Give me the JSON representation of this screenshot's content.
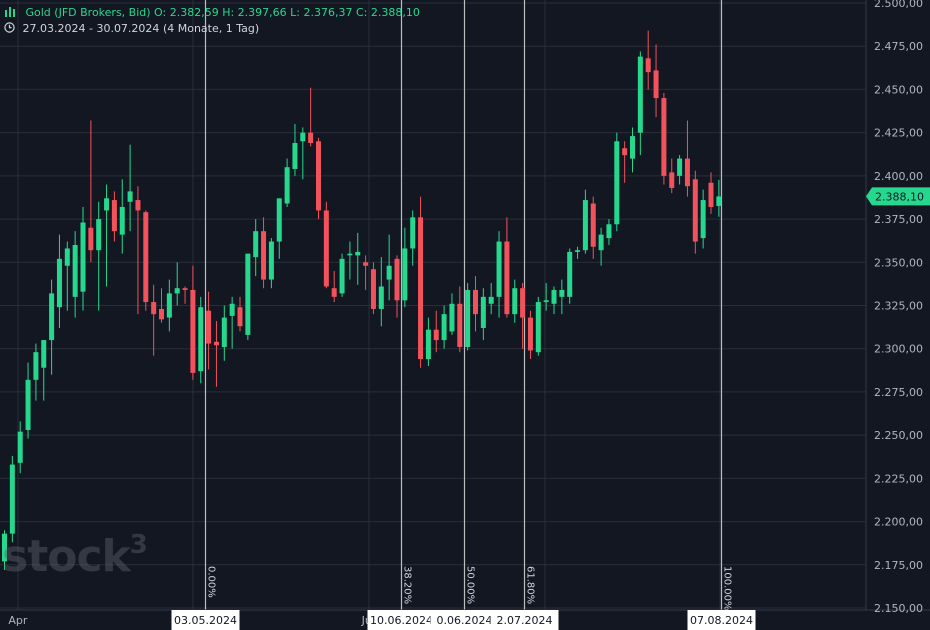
{
  "header": {
    "symbol": "Gold (JFD Brokers, Bid)",
    "open": "O: 2.382,59",
    "high": "H: 2.397,66",
    "low": "L: 2.376,37",
    "close": "C: 2.388,10",
    "range": "27.03.2024 - 30.07.2024",
    "interval": "(4 Monate, 1 Tag)",
    "icon": "clock-icon"
  },
  "watermark": "stock",
  "watermark_sup": "3",
  "colors": {
    "up": "#26d88e",
    "down": "#f2525b",
    "bg": "#131722",
    "grid": "#2a2e39",
    "fib": "#d9d9d9"
  },
  "chart_data": {
    "type": "candlestick",
    "ylim": [
      2150,
      2500
    ],
    "y_ticks": [
      "2.500,00",
      "2.475,00",
      "2.450,00",
      "2.425,00",
      "2.400,00",
      "2.375,00",
      "2.350,00",
      "2.325,00",
      "2.300,00",
      "2.275,00",
      "2.250,00",
      "2.225,00",
      "2.200,00",
      "2.175,00",
      "2.150,00"
    ],
    "last_price": {
      "value": 2388.1,
      "label": "2.388,10"
    },
    "x_labels": [
      {
        "label": "Apr",
        "index": 1
      },
      {
        "label": "Ju",
        "index": 46
      }
    ],
    "date_flags": [
      {
        "label": "03.05.2024",
        "index": 25.5
      },
      {
        "label": "10.06.2024",
        "index": 50.5
      },
      {
        "label": "0.06.2024",
        "index": 58.5
      },
      {
        "label": "2.07.2024",
        "index": 66.2
      },
      {
        "label": "07.08.2024",
        "index": 91.3
      }
    ],
    "fib_lines": [
      {
        "label": "0.00%",
        "index": 25.5
      },
      {
        "label": "38.20%",
        "index": 50.5
      },
      {
        "label": "50.00%",
        "index": 58.5
      },
      {
        "label": "61.80%",
        "index": 66.2
      },
      {
        "label": "100.00%",
        "index": 91.3
      }
    ],
    "candles": [
      {
        "o": 2177,
        "h": 2195,
        "l": 2172,
        "c": 2193
      },
      {
        "o": 2193,
        "h": 2238,
        "l": 2188,
        "c": 2233
      },
      {
        "o": 2234,
        "h": 2258,
        "l": 2228,
        "c": 2252
      },
      {
        "o": 2253,
        "h": 2292,
        "l": 2248,
        "c": 2282
      },
      {
        "o": 2282,
        "h": 2303,
        "l": 2270,
        "c": 2298
      },
      {
        "o": 2289,
        "h": 2305,
        "l": 2270,
        "c": 2305
      },
      {
        "o": 2305,
        "h": 2340,
        "l": 2285,
        "c": 2332
      },
      {
        "o": 2324,
        "h": 2366,
        "l": 2312,
        "c": 2352
      },
      {
        "o": 2348,
        "h": 2362,
        "l": 2322,
        "c": 2358
      },
      {
        "o": 2330,
        "h": 2368,
        "l": 2318,
        "c": 2360
      },
      {
        "o": 2333,
        "h": 2382,
        "l": 2322,
        "c": 2373
      },
      {
        "o": 2370,
        "h": 2432,
        "l": 2350,
        "c": 2357
      },
      {
        "o": 2357,
        "h": 2385,
        "l": 2322,
        "c": 2375
      },
      {
        "o": 2380,
        "h": 2395,
        "l": 2336,
        "c": 2387
      },
      {
        "o": 2386,
        "h": 2391,
        "l": 2362,
        "c": 2368
      },
      {
        "o": 2366,
        "h": 2398,
        "l": 2355,
        "c": 2382
      },
      {
        "o": 2385,
        "h": 2418,
        "l": 2368,
        "c": 2391
      },
      {
        "o": 2386,
        "h": 2394,
        "l": 2320,
        "c": 2380
      },
      {
        "o": 2379,
        "h": 2380,
        "l": 2322,
        "c": 2327
      },
      {
        "o": 2327,
        "h": 2337,
        "l": 2296,
        "c": 2320
      },
      {
        "o": 2323,
        "h": 2335,
        "l": 2315,
        "c": 2317
      },
      {
        "o": 2318,
        "h": 2340,
        "l": 2310,
        "c": 2332
      },
      {
        "o": 2332,
        "h": 2350,
        "l": 2325,
        "c": 2335
      },
      {
        "o": 2335,
        "h": 2336,
        "l": 2326,
        "c": 2334
      },
      {
        "o": 2334,
        "h": 2348,
        "l": 2282,
        "c": 2286
      },
      {
        "o": 2287,
        "h": 2330,
        "l": 2280,
        "c": 2324
      },
      {
        "o": 2322,
        "h": 2333,
        "l": 2288,
        "c": 2303
      },
      {
        "o": 2304,
        "h": 2316,
        "l": 2278,
        "c": 2302
      },
      {
        "o": 2301,
        "h": 2325,
        "l": 2293,
        "c": 2318
      },
      {
        "o": 2319,
        "h": 2330,
        "l": 2300,
        "c": 2326
      },
      {
        "o": 2324,
        "h": 2330,
        "l": 2310,
        "c": 2313
      },
      {
        "o": 2308,
        "h": 2355,
        "l": 2305,
        "c": 2355
      },
      {
        "o": 2353,
        "h": 2375,
        "l": 2342,
        "c": 2368
      },
      {
        "o": 2368,
        "h": 2376,
        "l": 2335,
        "c": 2340
      },
      {
        "o": 2340,
        "h": 2364,
        "l": 2335,
        "c": 2362
      },
      {
        "o": 2362,
        "h": 2385,
        "l": 2352,
        "c": 2387
      },
      {
        "o": 2384,
        "h": 2410,
        "l": 2382,
        "c": 2405
      },
      {
        "o": 2404,
        "h": 2430,
        "l": 2400,
        "c": 2419
      },
      {
        "o": 2420,
        "h": 2428,
        "l": 2398,
        "c": 2425
      },
      {
        "o": 2425,
        "h": 2451,
        "l": 2417,
        "c": 2419
      },
      {
        "o": 2420,
        "h": 2422,
        "l": 2375,
        "c": 2380
      },
      {
        "o": 2380,
        "h": 2385,
        "l": 2335,
        "c": 2336
      },
      {
        "o": 2335,
        "h": 2345,
        "l": 2327,
        "c": 2330
      },
      {
        "o": 2332,
        "h": 2355,
        "l": 2330,
        "c": 2352
      },
      {
        "o": 2354,
        "h": 2362,
        "l": 2340,
        "c": 2355
      },
      {
        "o": 2354,
        "h": 2367,
        "l": 2337,
        "c": 2356
      },
      {
        "o": 2350,
        "h": 2354,
        "l": 2334,
        "c": 2348
      },
      {
        "o": 2346,
        "h": 2350,
        "l": 2320,
        "c": 2323
      },
      {
        "o": 2323,
        "h": 2353,
        "l": 2313,
        "c": 2336
      },
      {
        "o": 2340,
        "h": 2366,
        "l": 2328,
        "c": 2348
      },
      {
        "o": 2352,
        "h": 2354,
        "l": 2318,
        "c": 2328
      },
      {
        "o": 2328,
        "h": 2370,
        "l": 2324,
        "c": 2358
      },
      {
        "o": 2358,
        "h": 2380,
        "l": 2348,
        "c": 2376
      },
      {
        "o": 2376,
        "h": 2388,
        "l": 2289,
        "c": 2294
      },
      {
        "o": 2294,
        "h": 2318,
        "l": 2290,
        "c": 2311
      },
      {
        "o": 2311,
        "h": 2322,
        "l": 2298,
        "c": 2305
      },
      {
        "o": 2305,
        "h": 2325,
        "l": 2300,
        "c": 2320
      },
      {
        "o": 2310,
        "h": 2332,
        "l": 2308,
        "c": 2326
      },
      {
        "o": 2326,
        "h": 2336,
        "l": 2298,
        "c": 2301
      },
      {
        "o": 2301,
        "h": 2338,
        "l": 2299,
        "c": 2334
      },
      {
        "o": 2334,
        "h": 2342,
        "l": 2310,
        "c": 2320
      },
      {
        "o": 2312,
        "h": 2335,
        "l": 2305,
        "c": 2330
      },
      {
        "o": 2326,
        "h": 2338,
        "l": 2320,
        "c": 2330
      },
      {
        "o": 2330,
        "h": 2368,
        "l": 2318,
        "c": 2362
      },
      {
        "o": 2362,
        "h": 2376,
        "l": 2318,
        "c": 2320
      },
      {
        "o": 2320,
        "h": 2340,
        "l": 2315,
        "c": 2335
      },
      {
        "o": 2335,
        "h": 2338,
        "l": 2300,
        "c": 2318
      },
      {
        "o": 2318,
        "h": 2322,
        "l": 2294,
        "c": 2299
      },
      {
        "o": 2298,
        "h": 2330,
        "l": 2296,
        "c": 2327
      },
      {
        "o": 2327,
        "h": 2338,
        "l": 2322,
        "c": 2328
      },
      {
        "o": 2326,
        "h": 2336,
        "l": 2320,
        "c": 2334
      },
      {
        "o": 2330,
        "h": 2340,
        "l": 2320,
        "c": 2334
      },
      {
        "o": 2330,
        "h": 2358,
        "l": 2326,
        "c": 2356
      },
      {
        "o": 2356,
        "h": 2359,
        "l": 2352,
        "c": 2357
      },
      {
        "o": 2357,
        "h": 2392,
        "l": 2355,
        "c": 2386
      },
      {
        "o": 2384,
        "h": 2388,
        "l": 2352,
        "c": 2359
      },
      {
        "o": 2357,
        "h": 2370,
        "l": 2348,
        "c": 2366
      },
      {
        "o": 2364,
        "h": 2375,
        "l": 2360,
        "c": 2372
      },
      {
        "o": 2372,
        "h": 2425,
        "l": 2368,
        "c": 2420
      },
      {
        "o": 2416,
        "h": 2420,
        "l": 2396,
        "c": 2412
      },
      {
        "o": 2410,
        "h": 2428,
        "l": 2402,
        "c": 2423
      },
      {
        "o": 2425,
        "h": 2472,
        "l": 2412,
        "c": 2469
      },
      {
        "o": 2468,
        "h": 2484,
        "l": 2450,
        "c": 2460
      },
      {
        "o": 2461,
        "h": 2476,
        "l": 2434,
        "c": 2445
      },
      {
        "o": 2445,
        "h": 2448,
        "l": 2395,
        "c": 2400
      },
      {
        "o": 2402,
        "h": 2410,
        "l": 2390,
        "c": 2393
      },
      {
        "o": 2400,
        "h": 2412,
        "l": 2395,
        "c": 2410
      },
      {
        "o": 2410,
        "h": 2432,
        "l": 2388,
        "c": 2394
      },
      {
        "o": 2398,
        "h": 2403,
        "l": 2355,
        "c": 2362
      },
      {
        "o": 2364,
        "h": 2392,
        "l": 2358,
        "c": 2386
      },
      {
        "o": 2396,
        "h": 2402,
        "l": 2378,
        "c": 2382
      },
      {
        "o": 2382.59,
        "h": 2397.66,
        "l": 2376.37,
        "c": 2388.1
      }
    ]
  }
}
